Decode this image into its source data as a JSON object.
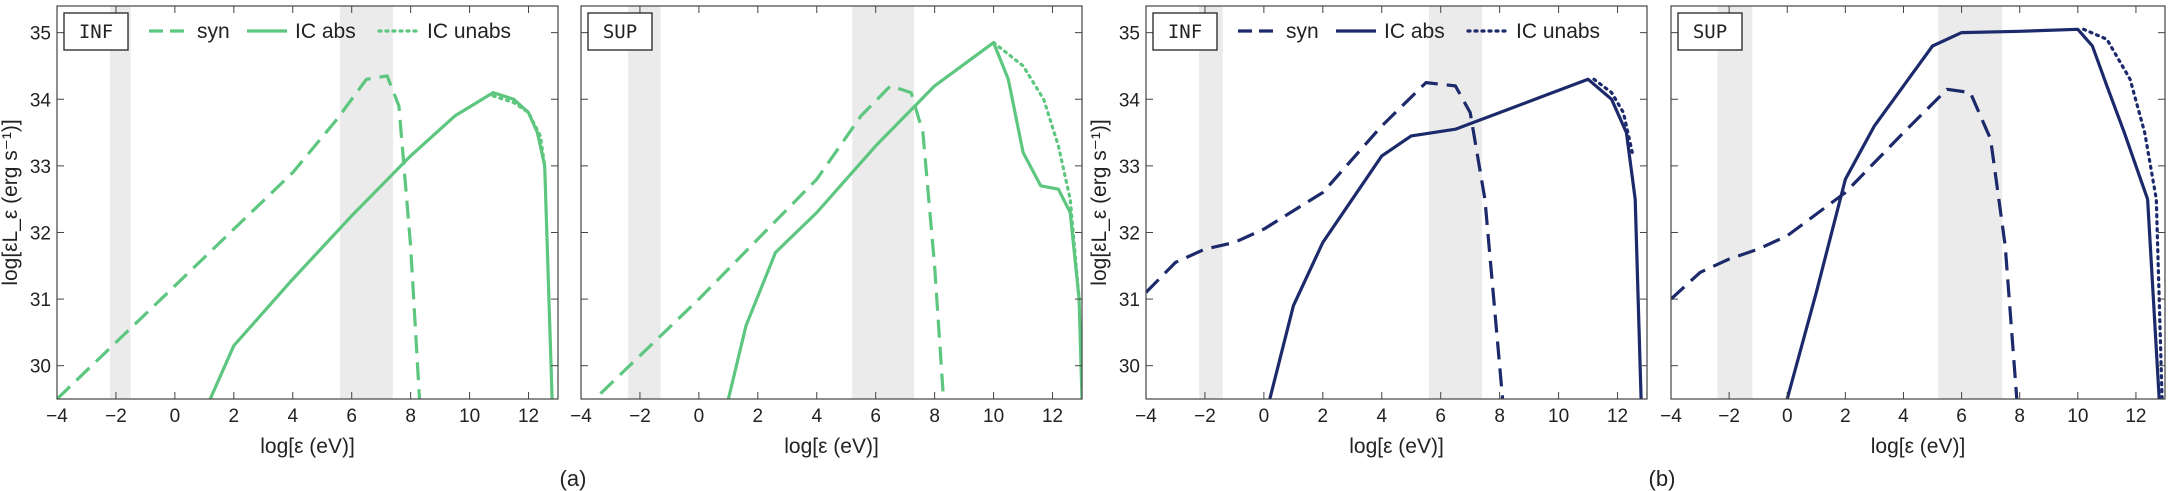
{
  "figure": {
    "captions": [
      "(a)",
      "(b)"
    ]
  },
  "legend": {
    "syn": "syn",
    "ic_abs": "IC abs",
    "ic_unabs": "IC unabs"
  },
  "axes": {
    "xlabel": "log[ε (eV)]",
    "ylabel": "log[εL_ε (erg s⁻¹)]",
    "xlim": [
      -4,
      13
    ],
    "ylim": [
      29.5,
      35.4
    ],
    "xticks": [
      -4,
      -2,
      0,
      2,
      4,
      6,
      8,
      10,
      12
    ],
    "yticks": [
      30,
      31,
      32,
      33,
      34,
      35
    ]
  },
  "colors": {
    "green": "#5dc67f",
    "navy": "#1c2a6b",
    "band": "#ebebeb",
    "frame": "#444444"
  },
  "chart_data": [
    {
      "type": "line",
      "panel": "INF",
      "group": "(a)",
      "color": "green",
      "bands": [
        [
          -2.2,
          -1.5
        ],
        [
          5.6,
          7.4
        ]
      ],
      "series": [
        {
          "name": "syn",
          "style": "dashed",
          "points": [
            [
              -4,
              29.5
            ],
            [
              0,
              31.2
            ],
            [
              2,
              32.05
            ],
            [
              4,
              32.9
            ],
            [
              5.5,
              33.7
            ],
            [
              6.5,
              34.3
            ],
            [
              7.2,
              34.35
            ],
            [
              7.6,
              33.9
            ],
            [
              8.0,
              31.8
            ],
            [
              8.3,
              29.5
            ]
          ]
        },
        {
          "name": "IC unabs",
          "style": "dotted",
          "points": [
            [
              10.8,
              34.05
            ],
            [
              11.5,
              33.95
            ],
            [
              12.0,
              33.8
            ],
            [
              12.4,
              33.45
            ],
            [
              12.55,
              33.0
            ]
          ]
        },
        {
          "name": "IC abs",
          "style": "solid",
          "points": [
            [
              1.2,
              29.5
            ],
            [
              2.0,
              30.3
            ],
            [
              4,
              31.3
            ],
            [
              6,
              32.25
            ],
            [
              8,
              33.15
            ],
            [
              9.5,
              33.75
            ],
            [
              10.8,
              34.1
            ],
            [
              11.5,
              34.0
            ],
            [
              12.0,
              33.8
            ],
            [
              12.3,
              33.5
            ],
            [
              12.55,
              33.0
            ],
            [
              12.8,
              29.5
            ]
          ]
        }
      ]
    },
    {
      "type": "line",
      "panel": "SUP",
      "group": "(a)",
      "color": "green",
      "bands": [
        [
          -2.4,
          -1.3
        ],
        [
          5.2,
          7.3
        ]
      ],
      "series": [
        {
          "name": "syn",
          "style": "dashed",
          "points": [
            [
              -4,
              29.3
            ],
            [
              0,
              31.0
            ],
            [
              2,
              31.9
            ],
            [
              4,
              32.8
            ],
            [
              5.5,
              33.75
            ],
            [
              6.5,
              34.2
            ],
            [
              7.2,
              34.1
            ],
            [
              7.6,
              33.5
            ],
            [
              8.0,
              31.5
            ],
            [
              8.3,
              29.5
            ]
          ]
        },
        {
          "name": "IC unabs",
          "style": "dotted",
          "points": [
            [
              10.0,
              34.85
            ],
            [
              11.0,
              34.5
            ],
            [
              11.7,
              34.0
            ],
            [
              12.2,
              33.3
            ],
            [
              12.6,
              32.5
            ],
            [
              12.9,
              31.0
            ]
          ]
        },
        {
          "name": "IC abs",
          "style": "solid",
          "points": [
            [
              1.0,
              29.5
            ],
            [
              1.6,
              30.6
            ],
            [
              2.6,
              31.7
            ],
            [
              4,
              32.3
            ],
            [
              6,
              33.3
            ],
            [
              8,
              34.2
            ],
            [
              10.0,
              34.85
            ],
            [
              10.5,
              34.3
            ],
            [
              11.0,
              33.2
            ],
            [
              11.6,
              32.7
            ],
            [
              12.2,
              32.65
            ],
            [
              12.6,
              32.3
            ],
            [
              12.9,
              31.0
            ],
            [
              13.0,
              29.5
            ]
          ]
        }
      ]
    },
    {
      "type": "line",
      "panel": "INF",
      "group": "(b)",
      "color": "navy",
      "bands": [
        [
          -2.2,
          -1.4
        ],
        [
          5.6,
          7.4
        ]
      ],
      "series": [
        {
          "name": "syn",
          "style": "dashed",
          "points": [
            [
              -4,
              31.1
            ],
            [
              -3,
              31.55
            ],
            [
              -2,
              31.75
            ],
            [
              -1,
              31.85
            ],
            [
              0,
              32.05
            ],
            [
              2,
              32.6
            ],
            [
              4,
              33.6
            ],
            [
              5.5,
              34.25
            ],
            [
              6.5,
              34.2
            ],
            [
              7.0,
              33.8
            ],
            [
              7.5,
              32.5
            ],
            [
              8.1,
              29.5
            ]
          ]
        },
        {
          "name": "IC unabs",
          "style": "dotted",
          "points": [
            [
              11.2,
              34.3
            ],
            [
              11.8,
              34.1
            ],
            [
              12.2,
              33.8
            ],
            [
              12.5,
              33.2
            ]
          ]
        },
        {
          "name": "IC abs",
          "style": "solid",
          "points": [
            [
              0.2,
              29.5
            ],
            [
              1,
              30.9
            ],
            [
              2,
              31.85
            ],
            [
              3,
              32.5
            ],
            [
              4,
              33.15
            ],
            [
              5,
              33.45
            ],
            [
              6.5,
              33.55
            ],
            [
              8,
              33.8
            ],
            [
              9.5,
              34.05
            ],
            [
              11.0,
              34.3
            ],
            [
              11.8,
              34.0
            ],
            [
              12.3,
              33.5
            ],
            [
              12.6,
              32.5
            ],
            [
              12.8,
              29.5
            ]
          ]
        }
      ]
    },
    {
      "type": "line",
      "panel": "SUP",
      "group": "(b)",
      "color": "navy",
      "bands": [
        [
          -2.4,
          -1.2
        ],
        [
          5.2,
          7.4
        ]
      ],
      "series": [
        {
          "name": "syn",
          "style": "dashed",
          "points": [
            [
              -4,
              31.0
            ],
            [
              -3,
              31.4
            ],
            [
              -2,
              31.6
            ],
            [
              -1,
              31.75
            ],
            [
              0,
              31.95
            ],
            [
              2,
              32.6
            ],
            [
              4,
              33.5
            ],
            [
              5.5,
              34.15
            ],
            [
              6.3,
              34.1
            ],
            [
              7.0,
              33.4
            ],
            [
              7.5,
              31.8
            ],
            [
              7.9,
              29.5
            ]
          ]
        },
        {
          "name": "IC unabs",
          "style": "dotted",
          "points": [
            [
              10.2,
              35.05
            ],
            [
              11.0,
              34.9
            ],
            [
              11.8,
              34.3
            ],
            [
              12.3,
              33.5
            ],
            [
              12.7,
              32.5
            ],
            [
              12.9,
              29.5
            ]
          ]
        },
        {
          "name": "IC abs",
          "style": "solid",
          "points": [
            [
              0,
              29.5
            ],
            [
              1,
              31.1
            ],
            [
              2,
              32.8
            ],
            [
              3,
              33.6
            ],
            [
              4,
              34.2
            ],
            [
              5,
              34.8
            ],
            [
              6,
              35.0
            ],
            [
              8,
              35.02
            ],
            [
              10.0,
              35.05
            ],
            [
              10.5,
              34.8
            ],
            [
              11.0,
              34.2
            ],
            [
              11.6,
              33.5
            ],
            [
              12.0,
              33.0
            ],
            [
              12.4,
              32.5
            ],
            [
              12.8,
              29.5
            ]
          ]
        }
      ]
    }
  ]
}
